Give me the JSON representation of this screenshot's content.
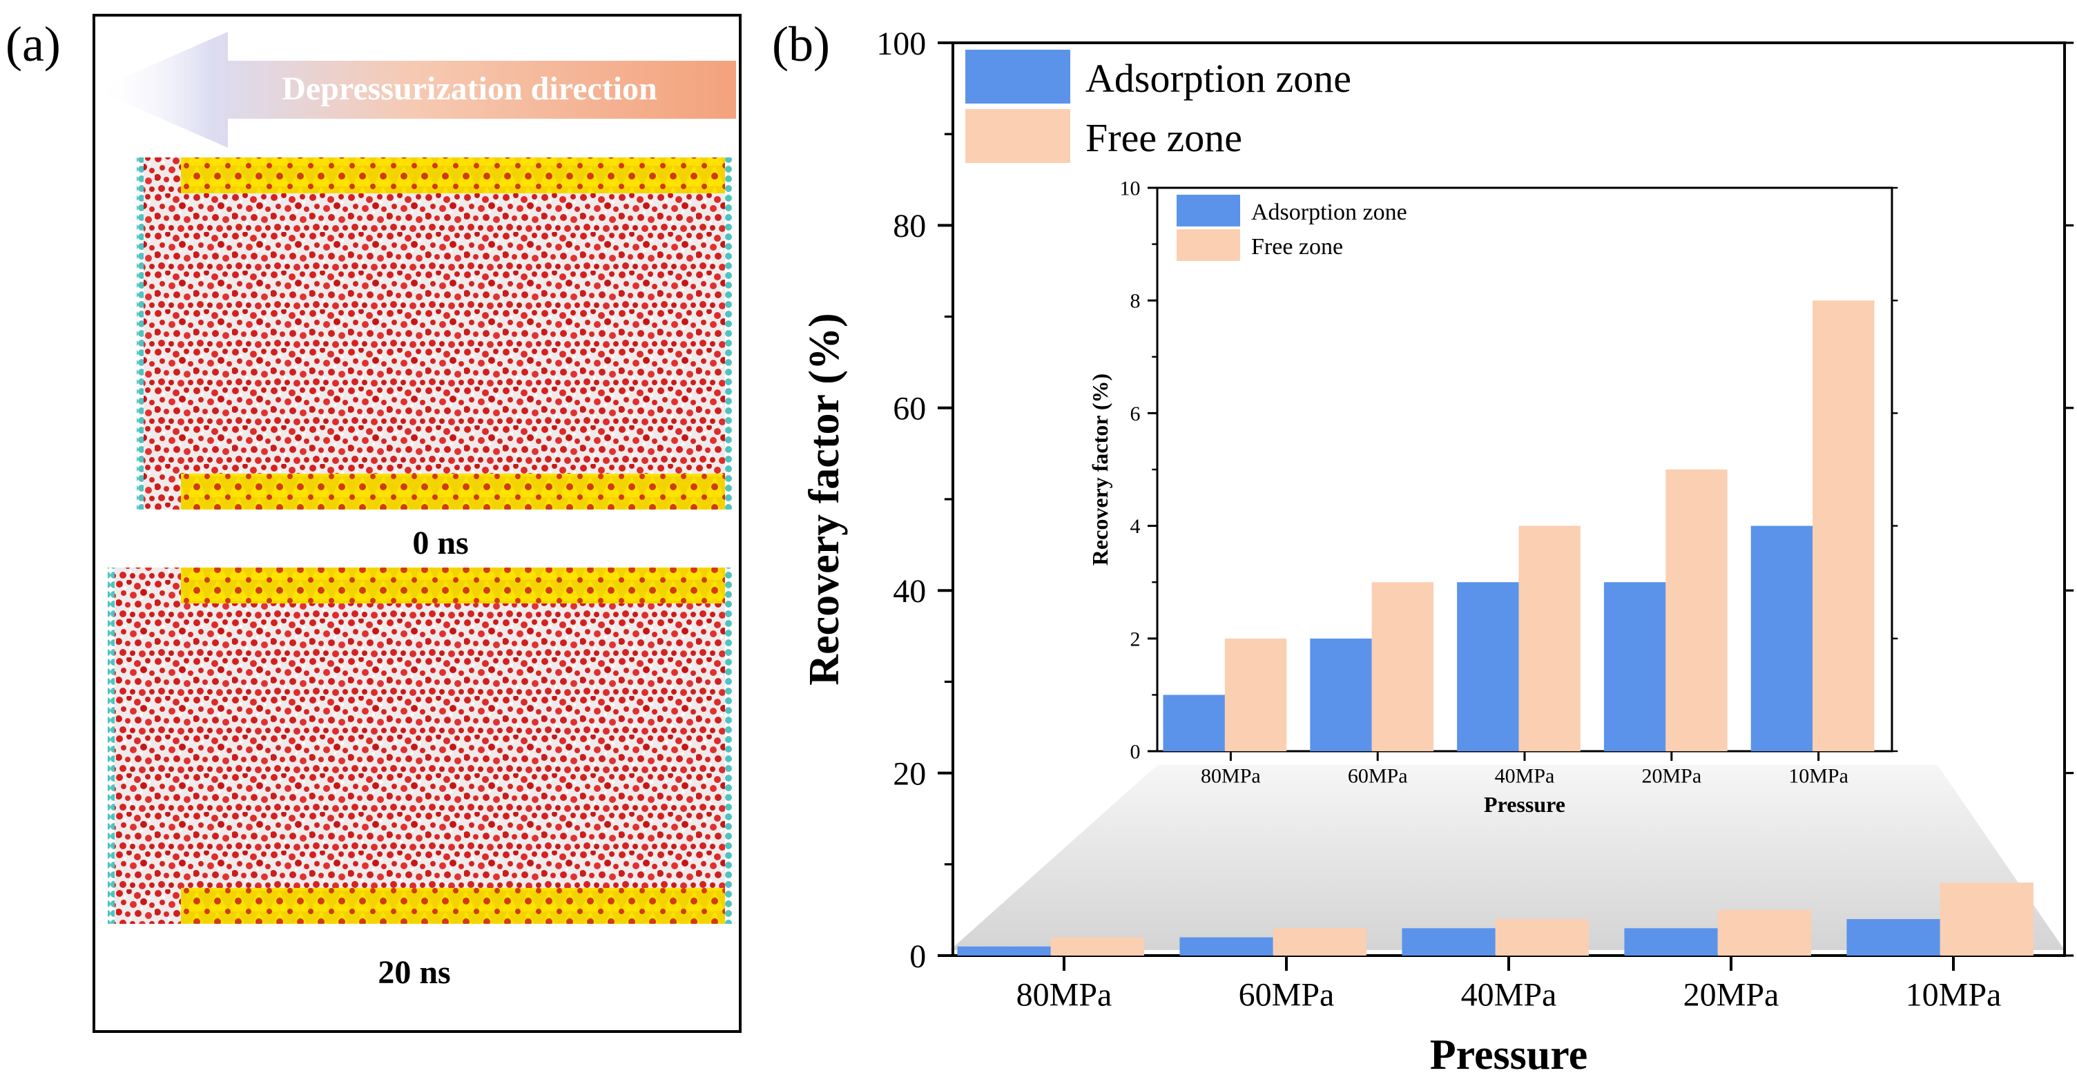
{
  "colors": {
    "adsorption": "#5b93ea",
    "free": "#fbcfb2",
    "water_red": "#d42020",
    "water_white": "#f2ecec",
    "wall_yellow": "#f6d800",
    "wall_red": "#d03010",
    "piston_teal": "#4fc3c0",
    "arrow_orange": "#f3a27c"
  },
  "panel_a": {
    "label": "(a)",
    "arrow_label": "Depressurization direction",
    "snapshots": [
      {
        "time_label": "0 ns"
      },
      {
        "time_label": "20 ns"
      }
    ]
  },
  "panel_b": {
    "label": "(b)"
  },
  "chart_data": [
    {
      "type": "bar",
      "name": "main",
      "categories": [
        "80MPa",
        "60MPa",
        "40MPa",
        "20MPa",
        "10MPa"
      ],
      "series": [
        {
          "name": "Adsorption zone",
          "values": [
            1,
            2,
            3,
            3,
            4
          ]
        },
        {
          "name": "Free zone",
          "values": [
            2,
            3,
            4,
            5,
            8
          ]
        }
      ],
      "xlabel": "Pressure",
      "ylabel": "Recovery  factor (%)",
      "ylim": [
        0,
        100
      ],
      "yticks": [
        0,
        20,
        40,
        60,
        80,
        100
      ],
      "legend": "top-left"
    },
    {
      "type": "bar",
      "name": "inset",
      "categories": [
        "80MPa",
        "60MPa",
        "40MPa",
        "20MPa",
        "10MPa"
      ],
      "series": [
        {
          "name": "Adsorption zone",
          "values": [
            1,
            2,
            3,
            3,
            4
          ]
        },
        {
          "name": "Free zone",
          "values": [
            2,
            3,
            4,
            5,
            8
          ]
        }
      ],
      "xlabel": "Pressure",
      "ylabel": "Recovery  factor (%)",
      "ylim": [
        0,
        10
      ],
      "yticks": [
        0,
        2,
        4,
        6,
        8,
        10
      ],
      "legend": "top-left"
    }
  ]
}
